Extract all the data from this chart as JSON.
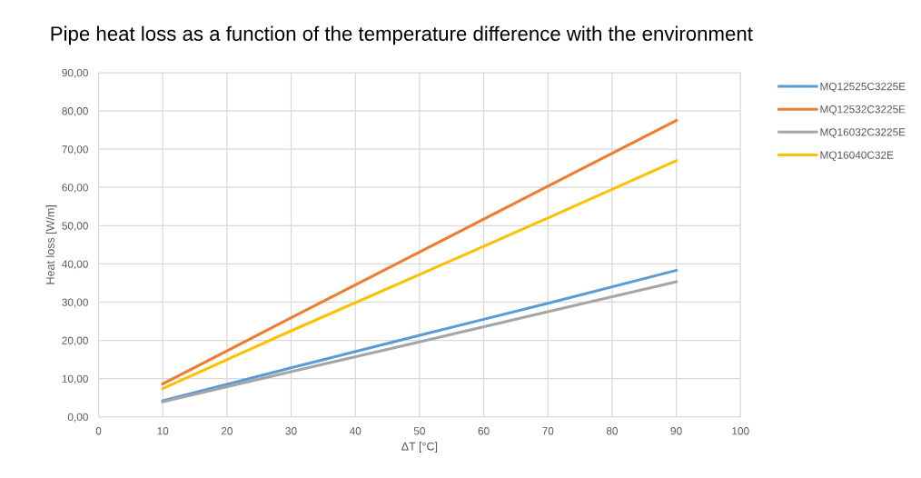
{
  "chart_data": {
    "type": "line",
    "title": "Pipe heat loss as a function of the temperature difference with the environment",
    "xlabel": "ΔT [°C]",
    "ylabel": "Heat loss [W/m]",
    "x": [
      10,
      30,
      50,
      70,
      90
    ],
    "series": [
      {
        "name": "MQ12525C3225E",
        "color": "#5b9bd5",
        "values": [
          4.2,
          12.8,
          21.3,
          29.7,
          38.3
        ]
      },
      {
        "name": "MQ12532C3225E",
        "color": "#ed7d31",
        "values": [
          8.6,
          25.9,
          43.1,
          60.3,
          77.5
        ]
      },
      {
        "name": "MQ16032C3225E",
        "color": "#a5a5a5",
        "values": [
          3.9,
          11.8,
          19.6,
          27.5,
          35.3
        ]
      },
      {
        "name": "MQ16040C32E",
        "color": "#ffc000",
        "values": [
          7.4,
          22.5,
          37.2,
          52.0,
          67.0
        ]
      }
    ],
    "xlim": [
      0,
      100
    ],
    "xticks": [
      0,
      10,
      20,
      30,
      40,
      50,
      60,
      70,
      80,
      90,
      100
    ],
    "ylim": [
      0,
      90
    ],
    "yticks": [
      {
        "value": 0,
        "label": "0,00"
      },
      {
        "value": 10,
        "label": "10,00"
      },
      {
        "value": 20,
        "label": "20,00"
      },
      {
        "value": 30,
        "label": "30,00"
      },
      {
        "value": 40,
        "label": "40,00"
      },
      {
        "value": 50,
        "label": "50,00"
      },
      {
        "value": 60,
        "label": "60,00"
      },
      {
        "value": 70,
        "label": "70,00"
      },
      {
        "value": 80,
        "label": "80,00"
      },
      {
        "value": 90,
        "label": "90,00"
      }
    ],
    "grid": true,
    "legend": "top right",
    "marker": "none",
    "line_style": "solid"
  }
}
